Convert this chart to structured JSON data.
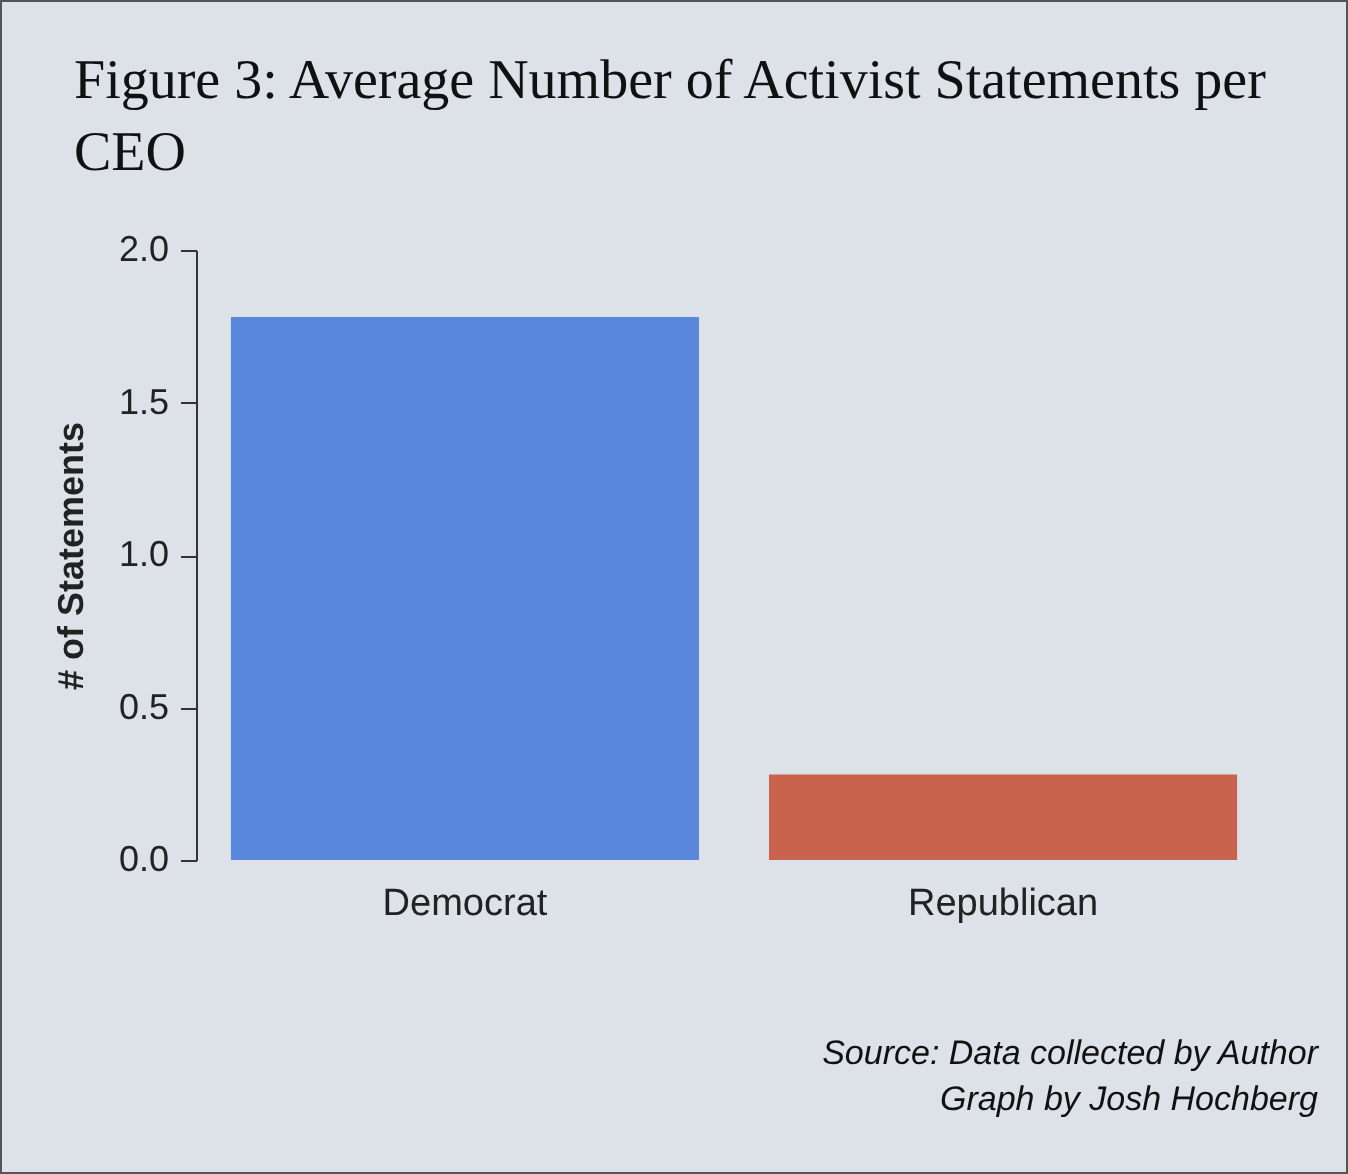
{
  "chart_data": {
    "type": "bar",
    "title": "Figure 3: Average Number of Activist Statements per CEO",
    "ylabel": "# of Statements",
    "categories": [
      "Democrat",
      "Republican"
    ],
    "values": [
      1.78,
      0.28
    ],
    "colors": [
      "#5887db",
      "#c9634d"
    ],
    "ylim": [
      0,
      2.0
    ],
    "yticks": [
      {
        "value": 0,
        "label": "0.0"
      },
      {
        "value": 0.5,
        "label": "0.5"
      },
      {
        "value": 1,
        "label": "1.0"
      },
      {
        "value": 1.5,
        "label": "1.5"
      },
      {
        "value": 2,
        "label": "2.0"
      }
    ],
    "grid": false,
    "annotations": [
      "Source: Data collected by Author",
      "Graph by Josh Hochberg"
    ]
  }
}
